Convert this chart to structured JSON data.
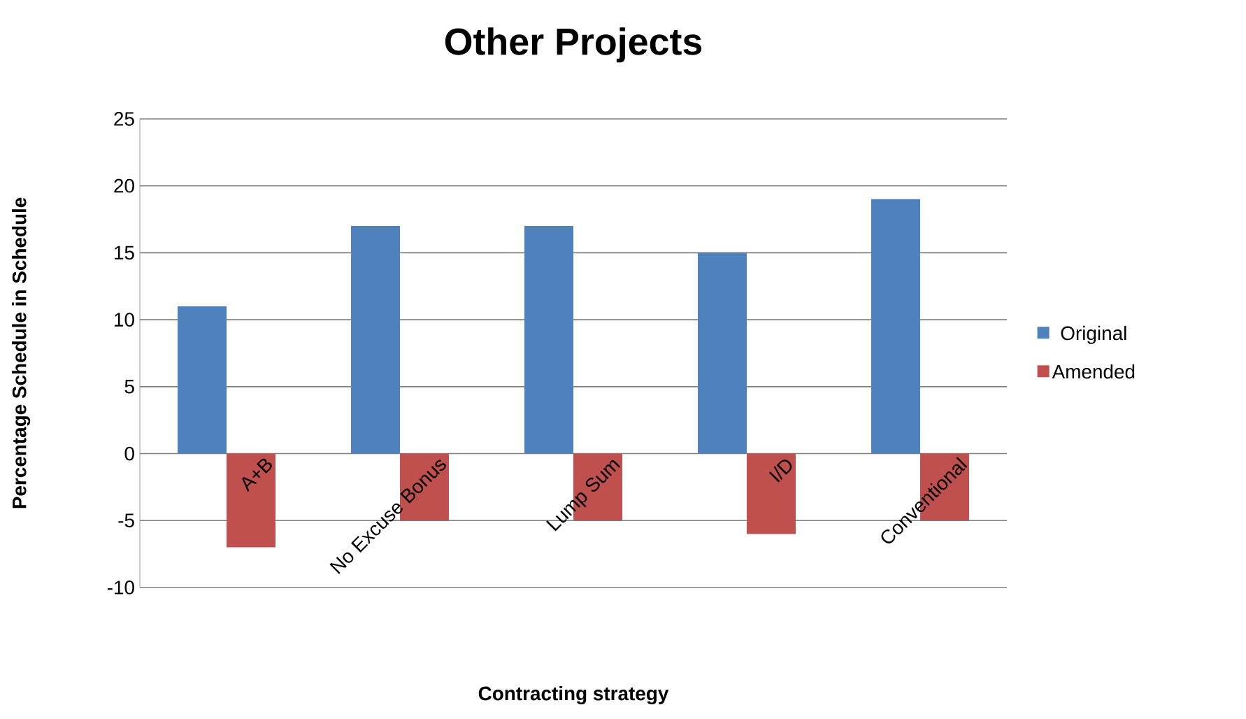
{
  "chart_data": {
    "type": "bar",
    "title": "Other Projects",
    "xlabel": "Contracting strategy",
    "ylabel": "Percentage Schedule in Schedule",
    "categories": [
      "A+B",
      "No Excuse Bonus",
      "Lump Sum",
      "I/D",
      "Conventional"
    ],
    "series": [
      {
        "name": "Original",
        "color": "#4f81bd",
        "values": [
          11,
          17,
          17,
          15,
          19
        ]
      },
      {
        "name": "Amended",
        "color": "#c0504d",
        "values": [
          -7,
          -5,
          -5,
          -6,
          -5
        ]
      }
    ],
    "ylim": [
      -10,
      25
    ],
    "yticks": [
      -10,
      -5,
      0,
      5,
      10,
      15,
      20,
      25
    ],
    "grid": "y",
    "legend": "right"
  }
}
